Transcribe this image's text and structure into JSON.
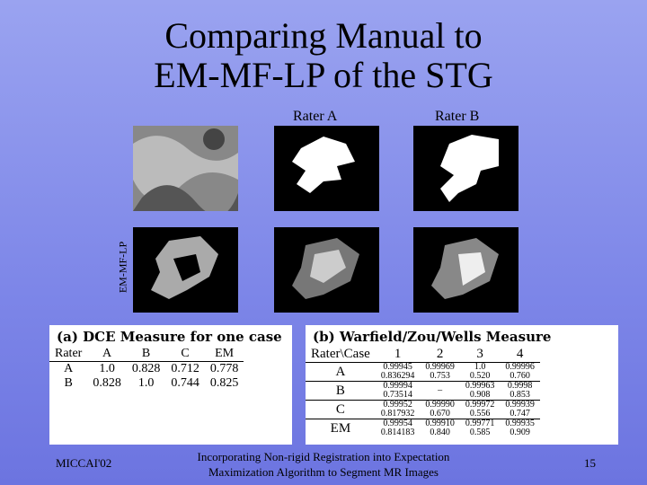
{
  "title": {
    "lines": [
      "Comparing Manual to",
      "EM-MF-LP of the STG"
    ]
  },
  "column_labels": [
    "Rater A",
    "Rater B"
  ],
  "row_label": "EM-MF-LP",
  "table_a": {
    "caption": "(a) DCE Measure for one case",
    "header": [
      "Rater",
      "A",
      "B",
      "C",
      "EM"
    ],
    "rows": [
      [
        "A",
        "1.0",
        "0.828",
        "0.712",
        "0.778"
      ],
      [
        "B",
        "0.828",
        "1.0",
        "0.744",
        "0.825"
      ]
    ]
  },
  "table_b": {
    "caption": "(b) Warfield/Zou/Wells Measure",
    "header": [
      "Rater\\Case",
      "1",
      "2",
      "3",
      "4"
    ],
    "rows": [
      [
        "A",
        [
          "0.99945",
          "0.836294"
        ],
        [
          "0.99969",
          "0.753"
        ],
        [
          "1.0",
          "0.520"
        ],
        [
          "0.99996",
          "0.760"
        ]
      ],
      [
        "B",
        [
          "0.99994",
          "0.73514"
        ],
        [
          "–"
        ],
        [
          "0.99963",
          "0.908"
        ],
        [
          "0.9998",
          "0.853"
        ]
      ],
      [
        "C",
        [
          "0.99952",
          "0.817932"
        ],
        [
          "0.99990",
          "0.670"
        ],
        [
          "0.99972",
          "0.556"
        ],
        [
          "0.99939",
          "0.747"
        ]
      ],
      [
        "EM",
        [
          "0.99954",
          "0.814183"
        ],
        [
          "0.99910",
          "0.840"
        ],
        [
          "0.99771",
          "0.585"
        ],
        [
          "0.99935",
          "0.909"
        ]
      ]
    ]
  },
  "footer": {
    "left": "MICCAI'02",
    "center": [
      "Incorporating Non-rigid Registration into Expectation",
      "Maximization Algorithm to Segment MR Images"
    ],
    "page": "15"
  }
}
